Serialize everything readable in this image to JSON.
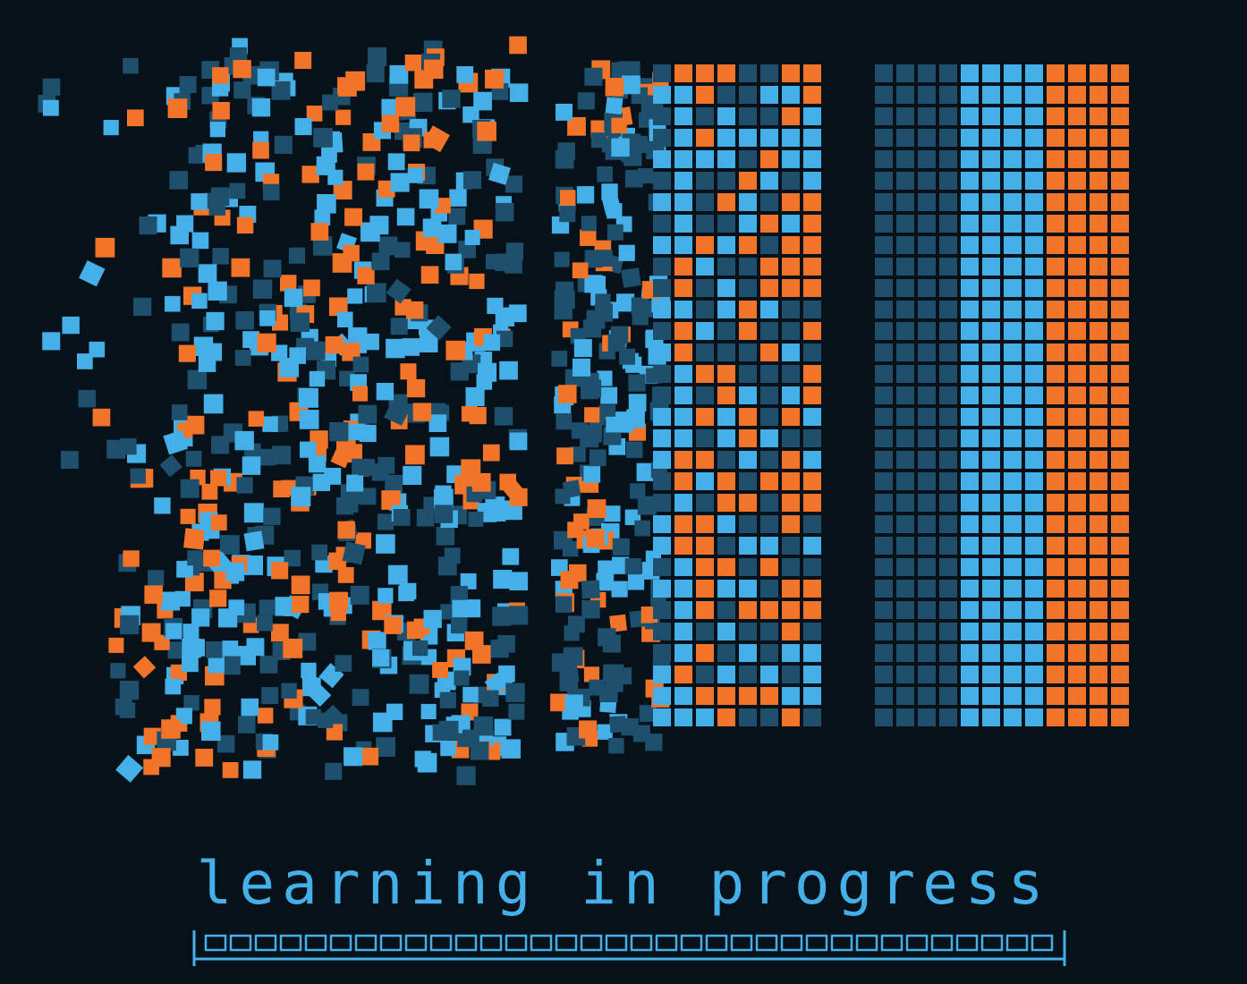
{
  "caption": "learning in progress",
  "colors": {
    "background": "#06111a",
    "dark_blue": "#1e4f6c",
    "light_blue": "#45b0e8",
    "orange": "#f27428"
  },
  "progress_bar": {
    "filled_cells": 34,
    "total_cells": 34,
    "fraction": 1.0
  }
}
